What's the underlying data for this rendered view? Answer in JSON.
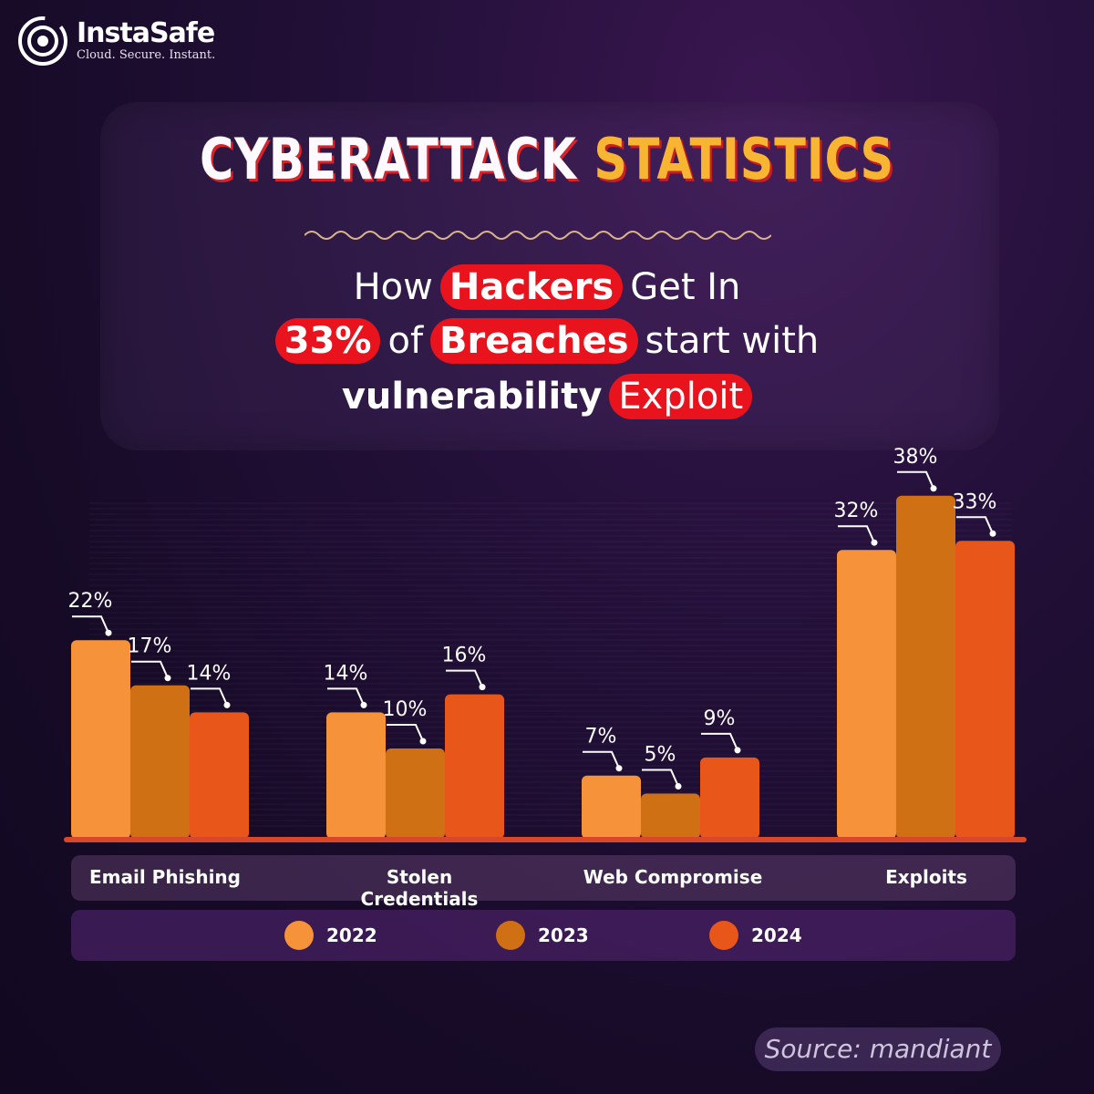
{
  "brand": {
    "name": "InstaSafe",
    "tagline": "Cloud. Secure. Instant."
  },
  "headline": {
    "title_part1": "CYBERATTACK",
    "title_part2": "STATISTICS",
    "line1": {
      "a": "How",
      "highlight": "Hackers",
      "b": "Get In"
    },
    "line2": {
      "highlight1": "33%",
      "a": "of",
      "highlight2": "Breaches",
      "b": "start with"
    },
    "line3": {
      "a": "vulnerability",
      "highlight": "Exploit"
    }
  },
  "colors": {
    "accent_red": "#e8131c",
    "accent_gold": "#f7b532",
    "series_2022": "#f5923a",
    "series_2023": "#cf7014",
    "series_2024": "#e8561a"
  },
  "chart_data": {
    "type": "bar",
    "categories": [
      "Email Phishing",
      "Stolen Credentials",
      "Web Compromise",
      "Exploits"
    ],
    "series": [
      {
        "name": "2022",
        "values": [
          22,
          14,
          7,
          32
        ],
        "labels": [
          "22%",
          "14%",
          "7%",
          "32%"
        ]
      },
      {
        "name": "2023",
        "values": [
          17,
          10,
          5,
          38
        ],
        "labels": [
          "17%",
          "10%",
          "5%",
          "38%"
        ]
      },
      {
        "name": "2024",
        "values": [
          14,
          16,
          9,
          33
        ],
        "labels": [
          "14%",
          "16%",
          "9%",
          "33%"
        ]
      }
    ],
    "ylim": [
      0,
      38
    ],
    "legend": "bottom",
    "grid": false
  },
  "source": "Source: mandiant"
}
